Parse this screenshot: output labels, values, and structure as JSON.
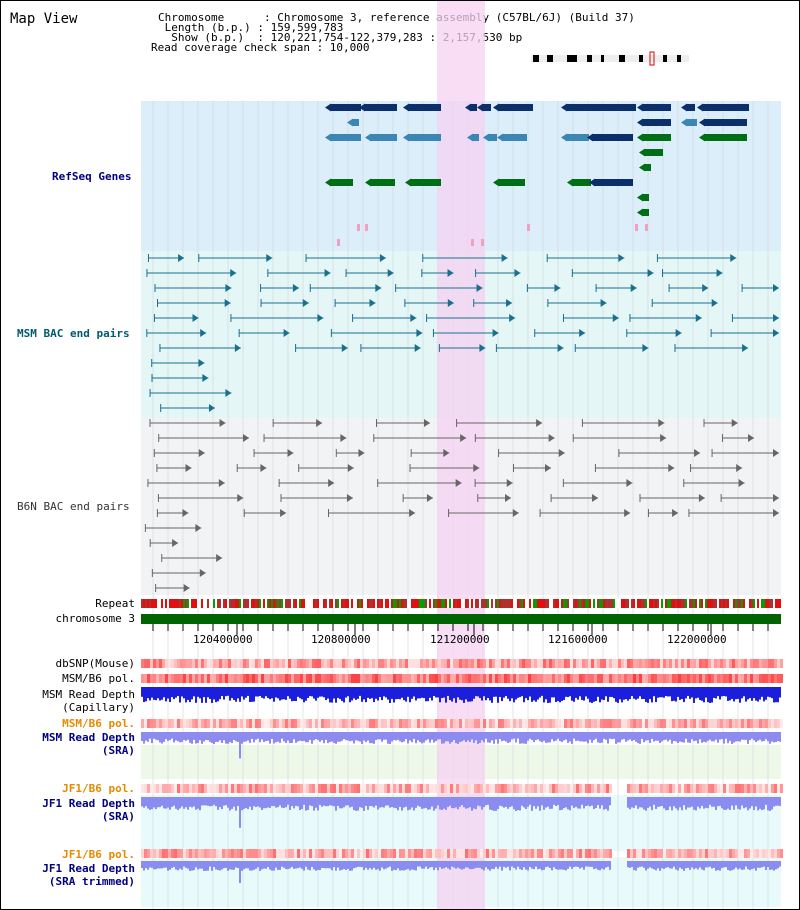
{
  "header": {
    "title": "Map View",
    "chromosome_line": "Chromosome      : Chromosome 3, reference assembly (C57BL/6J) (Build 37)",
    "length_line": " Length (b.p.) : 159,599,783",
    "show_line": "  Show (b.p.)  : 120,221,754-122,379,283 : 2,157,530 bp",
    "coverage_line": "Read coverage check span : 10,000"
  },
  "tracks": {
    "refseq": "RefSeq Genes",
    "msm_bac": "MSM BAC end pairs",
    "b6n_bac": "B6N BAC end pairs",
    "repeat": "Repeat",
    "chromosome": "chromosome 3",
    "dbsnp": "dbSNP(Mouse)",
    "msm_b6_pol_1": "MSM/B6 pol.",
    "msm_read_depth_cap_1": "MSM Read Depth",
    "msm_read_depth_cap_2": "(Capillary)",
    "msm_b6_pol_2": "MSM/B6 pol.",
    "msm_read_depth_sra_1": "MSM Read Depth",
    "msm_read_depth_sra_2": "(SRA)",
    "jf1_b6_pol_1": "JF1/B6 pol.",
    "jf1_read_depth_sra_1": "JF1 Read Depth",
    "jf1_read_depth_sra_2": "(SRA)",
    "jf1_b6_pol_2": "JF1/B6 pol.",
    "jf1_read_depth_trim_1": "JF1 Read Depth",
    "jf1_read_depth_trim_2": "(SRA trimmed)"
  },
  "axis": {
    "ticks": [
      "120400000",
      "120800000",
      "121200000",
      "121600000",
      "122000000"
    ]
  },
  "colors": {
    "refseq_bg": "#dbeefa",
    "msm_bg": "#e4f6f6",
    "b6n_bg": "#f2f3f5",
    "highlight": "#f6d2f2",
    "gene_dark": "#0b2f6b",
    "gene_mid": "#3c86b4",
    "gene_green": "#006e14",
    "msm_line": "#1a6f8f",
    "b6n_line": "#666666",
    "depth_blue": "#1b1fdc",
    "depth_light": "#8c8cf0",
    "snp_red": "#f06464",
    "pol_red": "#ff5050",
    "chrom_green": "#006400"
  }
}
